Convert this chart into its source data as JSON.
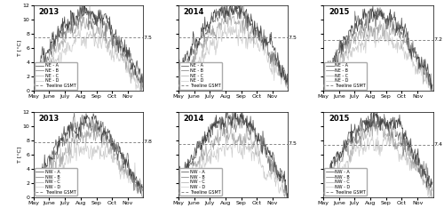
{
  "years": [
    "2013",
    "2014",
    "2015"
  ],
  "gsmt_NE": [
    7.5,
    7.5,
    7.2
  ],
  "gsmt_NW": [
    7.8,
    7.5,
    7.4
  ],
  "ylim": [
    0,
    12
  ],
  "yticks": [
    0,
    2,
    4,
    6,
    8,
    10,
    12
  ],
  "col_A": "#444444",
  "col_B": "#777777",
  "col_C": "#aaaaaa",
  "col_D": "#cccccc",
  "col_gsmt": "#888888",
  "legend_NE": [
    "NE - A",
    "NE - B",
    "NE - C",
    "NE - D",
    "--- Treeline GSMT"
  ],
  "legend_NW": [
    "NW - A",
    "NW - B",
    "NW - C",
    "NW - D",
    "--- Treeline GSMT"
  ],
  "months": [
    "May",
    "June",
    "July",
    "Aug",
    "Sep",
    "Oct",
    "Nov"
  ],
  "month_ticks": [
    0,
    31,
    61,
    92,
    123,
    153,
    184
  ],
  "n_days": 214,
  "ylabel": "T [°C]",
  "lw": 0.5,
  "gsmt_lw": 0.7,
  "title_fontsize": 6.0,
  "tick_fontsize": 4.5,
  "legend_fontsize": 3.5
}
